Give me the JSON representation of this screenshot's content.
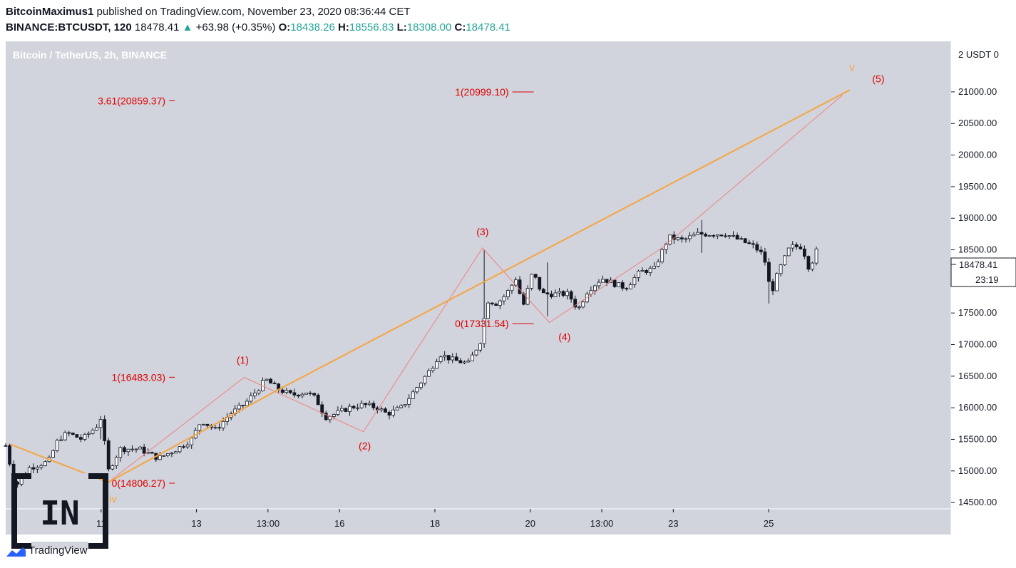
{
  "header": {
    "author": "BitcoinMaximus1",
    "published": "published on TradingView.com, November 23, 2020 08:36:44 CET",
    "symbol": "BINANCE:BTCUSDT, 120",
    "last": "18478.41",
    "change_arrow": "▲",
    "change": "+63.98 (+0.35%)",
    "o_label": "O:",
    "o": "18438.26",
    "h_label": "H:",
    "h": "18556.83",
    "l_label": "L:",
    "l": "18308.00",
    "c_label": "C:",
    "c": "18478.41"
  },
  "footer": {
    "brand": "TradingView",
    "logo_text": "IN"
  },
  "colors": {
    "background": "#d1d4dc",
    "impulse_line": "#f7a440",
    "wave_line": "#f08080",
    "annotation": "#e00000",
    "candle_up": "#ffffff",
    "candle_down": "#131722"
  },
  "chart_data": {
    "type": "candlestick",
    "title": "Bitcoin / TetherUS, 2h, BINANCE",
    "price_axis_header": "2 USDT 0",
    "ylim": [
      14400,
      21800
    ],
    "y_ticks": [
      14500,
      15000,
      15500,
      16000,
      16500,
      17000,
      17500,
      18000,
      18500,
      19000,
      19500,
      20000,
      20500,
      21000,
      21500
    ],
    "y_tick_labels": [
      "14500.00",
      "15000.00",
      "15500.00",
      "16000.00",
      "16500.00",
      "17000.00",
      "17500.00",
      "18000.00",
      "18500.00",
      "19000.00",
      "19500.00",
      "20000.00",
      "20500.00",
      "21000.00",
      "21500.00"
    ],
    "x_range_days": [
      9.0,
      26.0
    ],
    "x_ticks": [
      {
        "day": 11.0,
        "label": "11"
      },
      {
        "day": 13.0,
        "label": "13"
      },
      {
        "day": 14.5,
        "label": "13:00"
      },
      {
        "day": 16.0,
        "label": "16"
      },
      {
        "day": 18.0,
        "label": "18"
      },
      {
        "day": 20.0,
        "label": "20"
      },
      {
        "day": 21.5,
        "label": "13:00"
      },
      {
        "day": 23.0,
        "label": "23"
      },
      {
        "day": 25.0,
        "label": "25"
      }
    ],
    "last_price": {
      "value": 18478.41,
      "label": "18478.41",
      "countdown": "23:19"
    },
    "closes_path": [
      {
        "day": 9.0,
        "price": 15400
      },
      {
        "day": 9.2,
        "price": 14750
      },
      {
        "day": 9.5,
        "price": 15050
      },
      {
        "day": 9.9,
        "price": 15150
      },
      {
        "day": 10.1,
        "price": 15500
      },
      {
        "day": 10.3,
        "price": 15600
      },
      {
        "day": 10.6,
        "price": 15500
      },
      {
        "day": 10.9,
        "price": 15700
      },
      {
        "day": 11.0,
        "price": 15850
      },
      {
        "day": 11.15,
        "price": 15000
      },
      {
        "day": 11.4,
        "price": 15350
      },
      {
        "day": 11.8,
        "price": 15350
      },
      {
        "day": 12.2,
        "price": 15200
      },
      {
        "day": 12.6,
        "price": 15350
      },
      {
        "day": 12.9,
        "price": 15500
      },
      {
        "day": 13.1,
        "price": 15800
      },
      {
        "day": 13.4,
        "price": 15650
      },
      {
        "day": 13.7,
        "price": 15900
      },
      {
        "day": 14.0,
        "price": 16050
      },
      {
        "day": 14.3,
        "price": 16300
      },
      {
        "day": 14.45,
        "price": 16450
      },
      {
        "day": 14.7,
        "price": 16300
      },
      {
        "day": 15.0,
        "price": 16200
      },
      {
        "day": 15.3,
        "price": 16250
      },
      {
        "day": 15.5,
        "price": 16150
      },
      {
        "day": 15.7,
        "price": 15850
      },
      {
        "day": 15.9,
        "price": 15900
      },
      {
        "day": 16.2,
        "price": 16000
      },
      {
        "day": 16.5,
        "price": 16050
      },
      {
        "day": 16.8,
        "price": 16000
      },
      {
        "day": 17.0,
        "price": 15900
      },
      {
        "day": 17.3,
        "price": 16000
      },
      {
        "day": 17.6,
        "price": 16300
      },
      {
        "day": 17.9,
        "price": 16600
      },
      {
        "day": 18.1,
        "price": 16850
      },
      {
        "day": 18.4,
        "price": 16750
      },
      {
        "day": 18.7,
        "price": 16700
      },
      {
        "day": 18.95,
        "price": 17050
      },
      {
        "day": 19.1,
        "price": 17700
      },
      {
        "day": 19.3,
        "price": 17650
      },
      {
        "day": 19.5,
        "price": 17800
      },
      {
        "day": 19.7,
        "price": 18050
      },
      {
        "day": 19.85,
        "price": 17600
      },
      {
        "day": 20.05,
        "price": 18150
      },
      {
        "day": 20.25,
        "price": 17800
      },
      {
        "day": 20.5,
        "price": 17800
      },
      {
        "day": 20.8,
        "price": 17800
      },
      {
        "day": 21.0,
        "price": 17550
      },
      {
        "day": 21.2,
        "price": 17850
      },
      {
        "day": 21.5,
        "price": 18050
      },
      {
        "day": 21.8,
        "price": 17950
      },
      {
        "day": 22.0,
        "price": 17900
      },
      {
        "day": 22.3,
        "price": 18150
      },
      {
        "day": 22.6,
        "price": 18200
      },
      {
        "day": 22.9,
        "price": 18700
      },
      {
        "day": 23.2,
        "price": 18650
      },
      {
        "day": 23.5,
        "price": 18750
      },
      {
        "day": 23.8,
        "price": 18750
      },
      {
        "day": 24.1,
        "price": 18750
      },
      {
        "day": 24.4,
        "price": 18650
      },
      {
        "day": 24.7,
        "price": 18550
      },
      {
        "day": 24.9,
        "price": 18400
      },
      {
        "day": 25.05,
        "price": 17800
      },
      {
        "day": 25.2,
        "price": 18150
      },
      {
        "day": 25.45,
        "price": 18550
      },
      {
        "day": 25.7,
        "price": 18550
      },
      {
        "day": 25.85,
        "price": 18200
      },
      {
        "day": 26.0,
        "price": 18478
      }
    ],
    "spikes": [
      {
        "day": 11.0,
        "high": 15870,
        "low": 15500
      },
      {
        "day": 19.05,
        "high": 18500,
        "low": 17300
      },
      {
        "day": 20.35,
        "high": 18300,
        "low": 17450
      },
      {
        "day": 23.6,
        "high": 18970,
        "low": 18450
      },
      {
        "day": 25.0,
        "high": 18200,
        "low": 17650
      }
    ],
    "orange_line": [
      {
        "day": 9.1,
        "price": 15420
      },
      {
        "day": 11.15,
        "price": 14820
      },
      {
        "day": 14.75,
        "price": 16300
      },
      {
        "day": 26.7,
        "price": 21030
      }
    ],
    "wave_line": [
      {
        "day": 11.15,
        "price": 14820
      },
      {
        "day": 14.0,
        "price": 16480
      },
      {
        "day": 16.5,
        "price": 15620
      },
      {
        "day": 19.0,
        "price": 18530
      },
      {
        "day": 20.4,
        "price": 17350
      },
      {
        "day": 22.8,
        "price": 18550
      },
      {
        "day": 26.55,
        "price": 20950
      }
    ],
    "wave_labels": [
      {
        "text": "(1)",
        "day": 13.97,
        "price": 16700
      },
      {
        "text": "(2)",
        "day": 16.53,
        "price": 15340
      },
      {
        "text": "(3)",
        "day": 19.0,
        "price": 18730
      },
      {
        "text": "(4)",
        "day": 20.72,
        "price": 17070
      },
      {
        "text": "(5)",
        "day": 27.3,
        "price": 21150
      }
    ],
    "orange_labels": [
      {
        "text": "v",
        "day": 26.75,
        "price": 21330
      },
      {
        "text": "iv",
        "day": 11.25,
        "price": 14500
      }
    ],
    "fib_levels": [
      {
        "text": "3.61(20859.37)",
        "price": 20859.37,
        "day": 12.35
      },
      {
        "text": "1(16483.03)",
        "price": 16483.03,
        "day": 12.35
      },
      {
        "text": "0(14806.27)",
        "price": 14806.27,
        "day": 12.35
      },
      {
        "text": "1(20999.10)",
        "price": 20999.1,
        "day": 19.55
      },
      {
        "text": "0(17331.54)",
        "price": 17331.54,
        "day": 19.55
      }
    ]
  }
}
